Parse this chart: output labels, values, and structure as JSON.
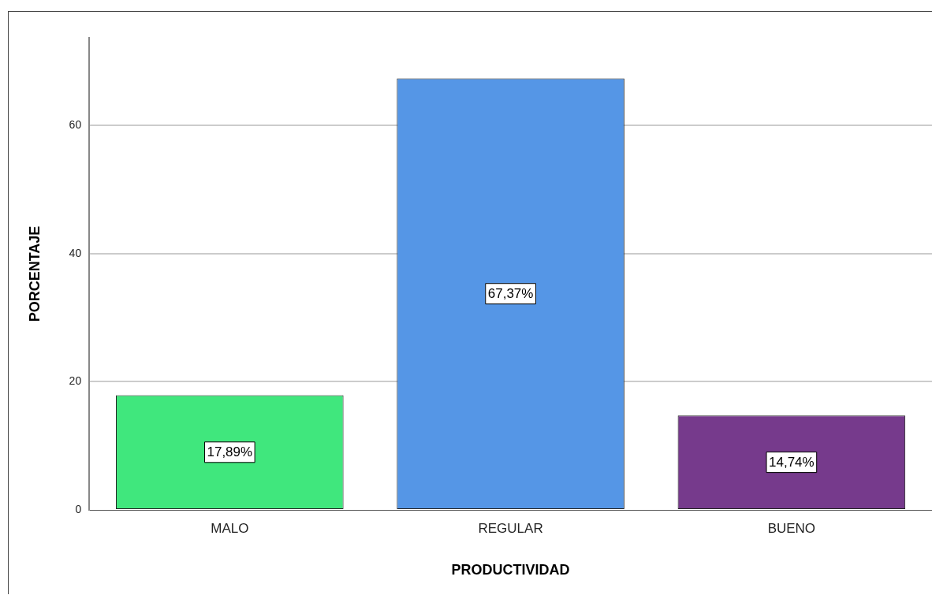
{
  "chart_data": {
    "type": "bar",
    "xlabel": "PRODUCTIVIDAD",
    "ylabel": "PORCENTAJE",
    "categories": [
      "MALO",
      "REGULAR",
      "BUENO"
    ],
    "values": [
      17.89,
      67.37,
      14.74
    ],
    "colors": [
      "#40e77d",
      "#5596e6",
      "#763a8c"
    ],
    "value_labels": [
      "17,89%",
      "67,37%",
      "14,74%"
    ],
    "ylim": [
      0,
      73.7
    ],
    "yticks": [
      0,
      20,
      40,
      60
    ],
    "grid": "y",
    "legend": false
  }
}
